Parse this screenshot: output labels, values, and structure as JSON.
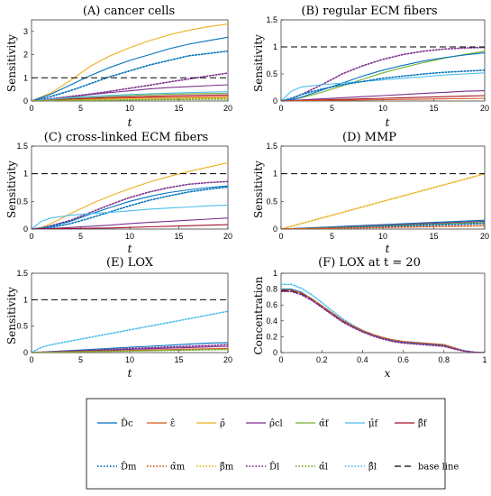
{
  "figure": {
    "panels": [
      {
        "id": "A",
        "title": "(A) cancer cells",
        "xlabel": "t",
        "ylabel": "Sensitivity"
      },
      {
        "id": "B",
        "title": "(B) regular ECM fibers",
        "xlabel": "t",
        "ylabel": "Sensitivity"
      },
      {
        "id": "C",
        "title": "(C) cross-linked ECM fibers",
        "xlabel": "t",
        "ylabel": "Sensitivity"
      },
      {
        "id": "D",
        "title": "(D) MMP",
        "xlabel": "t",
        "ylabel": "Sensitivity"
      },
      {
        "id": "E",
        "title": "(E) LOX",
        "xlabel": "t",
        "ylabel": "Sensitivity"
      },
      {
        "id": "F",
        "title": "(F) LOX at t = 20",
        "xlabel": "x",
        "ylabel": "Concentration"
      }
    ],
    "legend": [
      {
        "label": "D̂c",
        "color": "#0072BD",
        "dash": "solid"
      },
      {
        "label": "ε̂",
        "color": "#D95319",
        "dash": "solid"
      },
      {
        "label": "ρ̂",
        "color": "#EDB120",
        "dash": "solid"
      },
      {
        "label": "ρ̂cl",
        "color": "#7E2F8E",
        "dash": "solid"
      },
      {
        "label": "α̂f",
        "color": "#77AC30",
        "dash": "solid"
      },
      {
        "label": "μ̂f",
        "color": "#4DBEEE",
        "dash": "solid"
      },
      {
        "label": "β̂f",
        "color": "#A2142F",
        "dash": "solid"
      },
      {
        "label": "D̂m",
        "color": "#0072BD",
        "dash": "dotted"
      },
      {
        "label": "α̂m",
        "color": "#D95319",
        "dash": "dotted"
      },
      {
        "label": "β̂m",
        "color": "#EDB120",
        "dash": "dotted"
      },
      {
        "label": "D̂l",
        "color": "#7E2F8E",
        "dash": "dotted"
      },
      {
        "label": "α̂l",
        "color": "#77AC30",
        "dash": "dotted"
      },
      {
        "label": "β̂l",
        "color": "#4DBEEE",
        "dash": "dotted"
      },
      {
        "label": "base line",
        "color": "#000000",
        "dash": "dashed"
      }
    ]
  },
  "chart_data": [
    {
      "type": "line",
      "panel": "A",
      "title": "(A) cancer cells",
      "xlabel": "t",
      "ylabel": "Sensitivity",
      "xlim": [
        0,
        20
      ],
      "ylim": [
        0,
        3.5
      ],
      "xticks": [
        0,
        5,
        10,
        15,
        20
      ],
      "yticks": [
        0,
        1,
        2,
        3
      ],
      "x": [
        0,
        2,
        4,
        6,
        8,
        10,
        12,
        14,
        16,
        18,
        20
      ],
      "baseline": 1,
      "series": [
        {
          "name": "ρ̂",
          "values": [
            0,
            0.35,
            0.9,
            1.5,
            1.95,
            2.3,
            2.6,
            2.85,
            3.05,
            3.2,
            3.32
          ]
        },
        {
          "name": "D̂c",
          "values": [
            0,
            0.3,
            0.7,
            1.1,
            1.45,
            1.75,
            2.0,
            2.25,
            2.45,
            2.6,
            2.75
          ]
        },
        {
          "name": "D̂m",
          "values": [
            0,
            0.2,
            0.45,
            0.75,
            1.05,
            1.3,
            1.55,
            1.75,
            1.95,
            2.05,
            2.15
          ]
        },
        {
          "name": "D̂l",
          "values": [
            0,
            0.1,
            0.2,
            0.3,
            0.42,
            0.55,
            0.68,
            0.82,
            0.95,
            1.08,
            1.2
          ]
        },
        {
          "name": "ρ̂cl",
          "values": [
            0,
            0.08,
            0.18,
            0.28,
            0.36,
            0.44,
            0.52,
            0.58,
            0.62,
            0.66,
            0.7
          ]
        },
        {
          "name": "α̂f",
          "values": [
            0,
            0.06,
            0.12,
            0.17,
            0.21,
            0.24,
            0.27,
            0.29,
            0.31,
            0.32,
            0.33
          ]
        },
        {
          "name": "ε̂",
          "values": [
            0,
            0.03,
            0.06,
            0.09,
            0.11,
            0.13,
            0.15,
            0.16,
            0.17,
            0.18,
            0.19
          ]
        },
        {
          "name": "μ̂f",
          "values": [
            0,
            0.08,
            0.15,
            0.2,
            0.24,
            0.28,
            0.31,
            0.34,
            0.36,
            0.38,
            0.4
          ]
        },
        {
          "name": "β̂f",
          "values": [
            0,
            0.04,
            0.08,
            0.12,
            0.15,
            0.18,
            0.2,
            0.22,
            0.24,
            0.25,
            0.26
          ]
        },
        {
          "name": "β̂m",
          "values": [
            0,
            0.02,
            0.04,
            0.06,
            0.08,
            0.09,
            0.1,
            0.11,
            0.12,
            0.13,
            0.14
          ]
        },
        {
          "name": "α̂l",
          "values": [
            0,
            0.01,
            0.02,
            0.03,
            0.04,
            0.05,
            0.06,
            0.07,
            0.07,
            0.08,
            0.08
          ]
        }
      ]
    },
    {
      "type": "line",
      "panel": "B",
      "title": "(B) regular ECM fibers",
      "xlabel": "t",
      "ylabel": "Sensitivity",
      "xlim": [
        0,
        20
      ],
      "ylim": [
        0,
        1.5
      ],
      "xticks": [
        0,
        5,
        10,
        15,
        20
      ],
      "yticks": [
        0,
        0.5,
        1,
        1.5
      ],
      "x": [
        0,
        1,
        2,
        4,
        6,
        8,
        10,
        12,
        14,
        16,
        18,
        20
      ],
      "baseline": 1,
      "series": [
        {
          "name": "D̂l",
          "values": [
            0,
            0.04,
            0.12,
            0.3,
            0.5,
            0.65,
            0.77,
            0.86,
            0.92,
            0.96,
            0.98,
            0.99
          ]
        },
        {
          "name": "α̂f",
          "values": [
            0,
            0.02,
            0.06,
            0.16,
            0.28,
            0.4,
            0.52,
            0.62,
            0.71,
            0.79,
            0.86,
            0.92
          ]
        },
        {
          "name": "D̂c",
          "values": [
            0,
            0.02,
            0.07,
            0.2,
            0.33,
            0.46,
            0.57,
            0.66,
            0.74,
            0.8,
            0.85,
            0.89
          ]
        },
        {
          "name": "μ̂f",
          "values": [
            0,
            0.18,
            0.26,
            0.3,
            0.33,
            0.36,
            0.39,
            0.42,
            0.45,
            0.48,
            0.5,
            0.52
          ]
        },
        {
          "name": "D̂m",
          "values": [
            0,
            0.05,
            0.12,
            0.22,
            0.3,
            0.36,
            0.42,
            0.46,
            0.5,
            0.53,
            0.55,
            0.57
          ]
        },
        {
          "name": "ρ̂cl",
          "values": [
            0,
            0.01,
            0.02,
            0.04,
            0.06,
            0.08,
            0.1,
            0.12,
            0.14,
            0.16,
            0.18,
            0.19
          ]
        },
        {
          "name": "β̂f",
          "values": [
            0,
            0.005,
            0.01,
            0.02,
            0.03,
            0.04,
            0.05,
            0.06,
            0.07,
            0.08,
            0.09,
            0.1
          ]
        },
        {
          "name": "ε̂",
          "values": [
            0,
            0.003,
            0.006,
            0.01,
            0.015,
            0.02,
            0.025,
            0.03,
            0.035,
            0.04,
            0.045,
            0.05
          ]
        }
      ]
    },
    {
      "type": "line",
      "panel": "C",
      "title": "(C) cross-linked ECM fibers",
      "xlabel": "t",
      "ylabel": "Sensitivity",
      "xlim": [
        0,
        20
      ],
      "ylim": [
        0,
        1.5
      ],
      "xticks": [
        0,
        5,
        10,
        15,
        20
      ],
      "yticks": [
        0,
        0.5,
        1,
        1.5
      ],
      "x": [
        0,
        1,
        2,
        4,
        6,
        8,
        10,
        12,
        14,
        16,
        18,
        20
      ],
      "baseline": 1,
      "series": [
        {
          "name": "ρ̂",
          "values": [
            0,
            0.03,
            0.1,
            0.28,
            0.45,
            0.6,
            0.73,
            0.85,
            0.95,
            1.04,
            1.12,
            1.2
          ]
        },
        {
          "name": "D̂l",
          "values": [
            0,
            0.02,
            0.06,
            0.16,
            0.3,
            0.44,
            0.57,
            0.67,
            0.75,
            0.81,
            0.84,
            0.86
          ]
        },
        {
          "name": "D̂c",
          "values": [
            0,
            0.02,
            0.05,
            0.14,
            0.27,
            0.39,
            0.5,
            0.59,
            0.66,
            0.71,
            0.75,
            0.78
          ]
        },
        {
          "name": "D̂m",
          "values": [
            0,
            0.01,
            0.03,
            0.1,
            0.2,
            0.31,
            0.42,
            0.52,
            0.6,
            0.67,
            0.72,
            0.76
          ]
        },
        {
          "name": "μ̂f",
          "values": [
            0,
            0.14,
            0.2,
            0.25,
            0.28,
            0.3,
            0.33,
            0.36,
            0.38,
            0.4,
            0.42,
            0.43
          ]
        },
        {
          "name": "ρ̂cl",
          "values": [
            0,
            0.005,
            0.01,
            0.03,
            0.05,
            0.07,
            0.1,
            0.12,
            0.14,
            0.16,
            0.18,
            0.2
          ]
        },
        {
          "name": "β̂f",
          "values": [
            0,
            0.003,
            0.006,
            0.01,
            0.015,
            0.02,
            0.03,
            0.04,
            0.05,
            0.06,
            0.07,
            0.08
          ]
        }
      ]
    },
    {
      "type": "line",
      "panel": "D",
      "title": "(D) MMP",
      "xlabel": "t",
      "ylabel": "Sensitivity",
      "xlim": [
        0,
        20
      ],
      "ylim": [
        0,
        1.5
      ],
      "xticks": [
        0,
        5,
        10,
        15,
        20
      ],
      "yticks": [
        0,
        0.5,
        1,
        1.5
      ],
      "x": [
        0,
        5,
        10,
        15,
        20
      ],
      "baseline": 1,
      "series": [
        {
          "name": "β̂m",
          "values": [
            0,
            0.25,
            0.5,
            0.75,
            1.0
          ]
        },
        {
          "name": "D̂c",
          "values": [
            0,
            0.04,
            0.08,
            0.12,
            0.16
          ]
        },
        {
          "name": "ρ̂cl",
          "values": [
            0,
            0.035,
            0.07,
            0.105,
            0.14
          ]
        },
        {
          "name": "α̂f",
          "values": [
            0,
            0.03,
            0.06,
            0.09,
            0.12
          ]
        },
        {
          "name": "D̂m",
          "values": [
            0,
            0.025,
            0.05,
            0.075,
            0.1
          ]
        },
        {
          "name": "α̂m",
          "values": [
            0,
            0.015,
            0.03,
            0.045,
            0.06
          ]
        }
      ]
    },
    {
      "type": "line",
      "panel": "E",
      "title": "(E) LOX",
      "xlabel": "t",
      "ylabel": "Sensitivity",
      "xlim": [
        0,
        20
      ],
      "ylim": [
        0,
        1.5
      ],
      "xticks": [
        0,
        5,
        10,
        15,
        20
      ],
      "yticks": [
        0,
        0.5,
        1,
        1.5
      ],
      "x": [
        0,
        1,
        2,
        4,
        6,
        8,
        10,
        12,
        14,
        16,
        18,
        20
      ],
      "baseline": 1,
      "series": [
        {
          "name": "β̂l",
          "values": [
            0,
            0.1,
            0.15,
            0.22,
            0.29,
            0.36,
            0.43,
            0.5,
            0.57,
            0.64,
            0.71,
            0.78
          ]
        },
        {
          "name": "D̂c",
          "values": [
            0,
            0.01,
            0.02,
            0.04,
            0.06,
            0.08,
            0.1,
            0.12,
            0.14,
            0.16,
            0.18,
            0.19
          ]
        },
        {
          "name": "D̂l",
          "values": [
            0,
            0.008,
            0.016,
            0.03,
            0.045,
            0.06,
            0.075,
            0.09,
            0.105,
            0.12,
            0.135,
            0.15
          ]
        },
        {
          "name": "ρ̂cl",
          "values": [
            0,
            0.006,
            0.012,
            0.024,
            0.036,
            0.048,
            0.06,
            0.072,
            0.084,
            0.096,
            0.108,
            0.12
          ]
        },
        {
          "name": "ε̂",
          "values": [
            0,
            0.004,
            0.008,
            0.016,
            0.024,
            0.032,
            0.04,
            0.048,
            0.056,
            0.064,
            0.072,
            0.08
          ]
        },
        {
          "name": "α̂l",
          "values": [
            0,
            0.003,
            0.006,
            0.012,
            0.018,
            0.024,
            0.03,
            0.036,
            0.042,
            0.048,
            0.054,
            0.06
          ]
        }
      ]
    },
    {
      "type": "line",
      "panel": "F",
      "title": "(F) LOX at t = 20",
      "xlabel": "x",
      "ylabel": "Concentration",
      "xlim": [
        0,
        1
      ],
      "ylim": [
        0,
        1
      ],
      "xticks": [
        0,
        0.2,
        0.4,
        0.6,
        0.8,
        1
      ],
      "yticks": [
        0,
        0.2,
        0.4,
        0.6,
        0.8,
        1
      ],
      "x": [
        0,
        0.05,
        0.1,
        0.15,
        0.2,
        0.25,
        0.3,
        0.35,
        0.4,
        0.45,
        0.5,
        0.55,
        0.6,
        0.65,
        0.7,
        0.75,
        0.8,
        0.85,
        0.9,
        0.95,
        1.0
      ],
      "series": [
        {
          "name": "base line",
          "values": [
            0.78,
            0.78,
            0.74,
            0.67,
            0.58,
            0.49,
            0.4,
            0.33,
            0.27,
            0.22,
            0.18,
            0.15,
            0.13,
            0.12,
            0.11,
            0.1,
            0.09,
            0.05,
            0.02,
            0.005,
            0.0
          ]
        },
        {
          "name": "β̂l",
          "values": [
            0.86,
            0.86,
            0.81,
            0.73,
            0.63,
            0.53,
            0.43,
            0.35,
            0.28,
            0.23,
            0.19,
            0.16,
            0.14,
            0.13,
            0.12,
            0.11,
            0.1,
            0.06,
            0.025,
            0.006,
            0.0
          ]
        },
        {
          "name": "D̂c",
          "values": [
            0.8,
            0.8,
            0.76,
            0.68,
            0.59,
            0.5,
            0.41,
            0.33,
            0.27,
            0.22,
            0.18,
            0.15,
            0.13,
            0.12,
            0.11,
            0.1,
            0.09,
            0.05,
            0.02,
            0.005,
            0.0
          ]
        },
        {
          "name": "ε̂",
          "values": [
            0.79,
            0.79,
            0.75,
            0.68,
            0.59,
            0.5,
            0.41,
            0.34,
            0.28,
            0.23,
            0.19,
            0.16,
            0.14,
            0.13,
            0.12,
            0.11,
            0.1,
            0.06,
            0.02,
            0.006,
            0.0
          ]
        },
        {
          "name": "D̂l",
          "values": [
            0.77,
            0.77,
            0.73,
            0.66,
            0.57,
            0.48,
            0.39,
            0.32,
            0.26,
            0.21,
            0.17,
            0.14,
            0.12,
            0.11,
            0.1,
            0.09,
            0.08,
            0.045,
            0.018,
            0.004,
            0.0
          ]
        }
      ]
    }
  ]
}
